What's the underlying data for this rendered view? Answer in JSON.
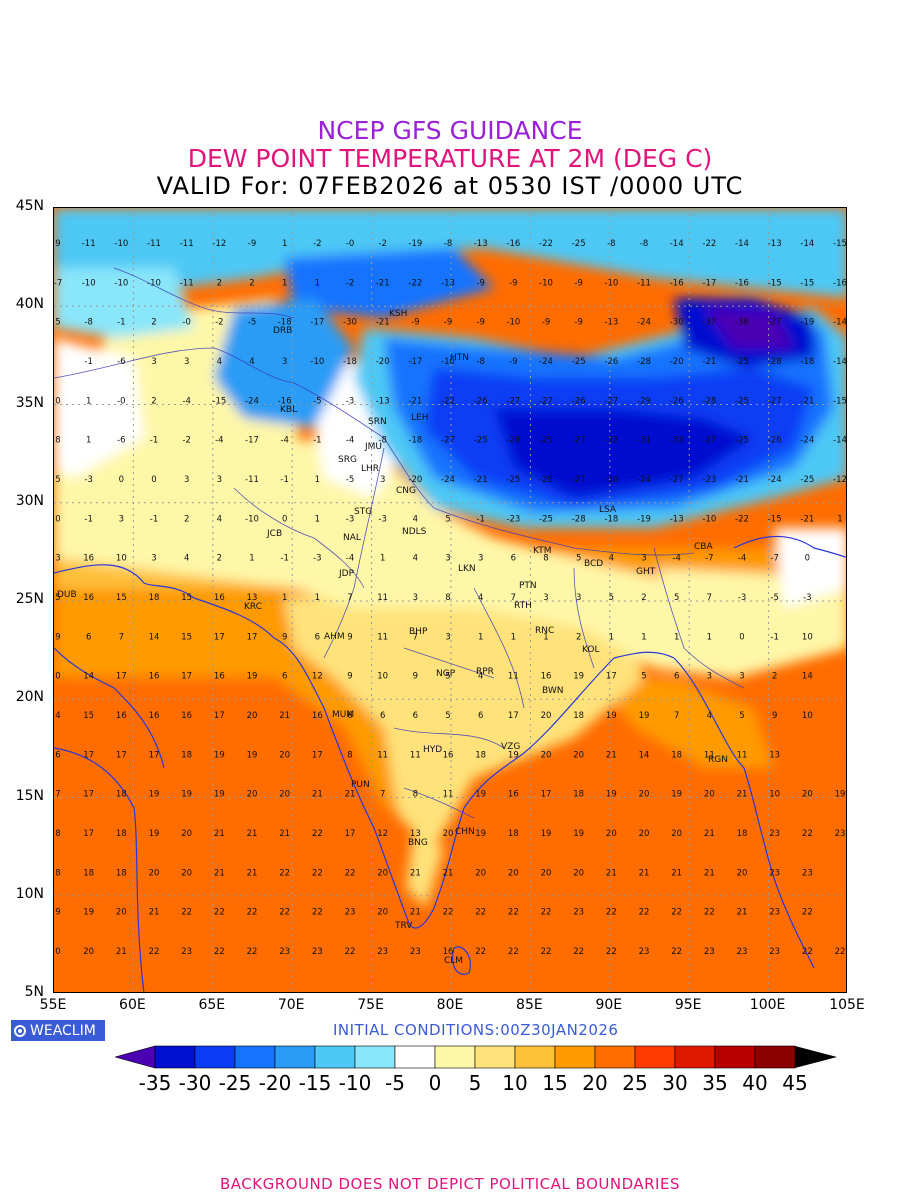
{
  "header": {
    "line1": "NCEP GFS GUIDANCE",
    "line2": "DEW POINT TEMPERATURE AT 2M (DEG C)",
    "line3": "VALID For: 07FEB2026 at 0530 IST /0000 UTC",
    "line1_color": "#9a1fd6",
    "line2_color": "#e0147a"
  },
  "axes": {
    "lat_labels": [
      "45N",
      "40N",
      "35N",
      "30N",
      "25N",
      "20N",
      "15N",
      "10N",
      "5N"
    ],
    "lon_labels": [
      "55E",
      "60E",
      "65E",
      "70E",
      "75E",
      "80E",
      "85E",
      "90E",
      "95E",
      "100E",
      "105E"
    ],
    "lat_range": [
      5,
      45
    ],
    "lon_range": [
      55,
      105
    ]
  },
  "logo": {
    "text": "WEACLIM",
    "color": "#3a5bd8"
  },
  "initial_conditions": "INITIAL CONDITIONS:00Z30JAN2026",
  "colorbar": {
    "labels": [
      "-35",
      "-30",
      "-25",
      "-20",
      "-15",
      "-10",
      "-5",
      "0",
      "5",
      "10",
      "15",
      "20",
      "25",
      "30",
      "35",
      "40",
      "45"
    ],
    "colors": [
      "#4b00b4",
      "#0010d0",
      "#0a3cf5",
      "#1473ff",
      "#2a9cf5",
      "#4ec8f5",
      "#8ae6fa",
      "#ffffff",
      "#fff7a8",
      "#ffe27a",
      "#ffc03a",
      "#ff9a00",
      "#ff6c00",
      "#ff3a00",
      "#e01800",
      "#b80000",
      "#8c0000",
      "#000000"
    ]
  },
  "cities": [
    "KSH",
    "DRB",
    "HTN",
    "KBL",
    "SRN",
    "LEH",
    "JMU",
    "SRG",
    "LHR",
    "CNG",
    "STG",
    "NAL",
    "NDLS",
    "JCB",
    "LSA",
    "KTM",
    "BCD",
    "CBA",
    "GHT",
    "JDP",
    "LKN",
    "PTN",
    "DUB",
    "KRC",
    "RTH",
    "BHP",
    "RNC",
    "AHM",
    "KOL",
    "NGP",
    "RPR",
    "BWN",
    "MUM",
    "HYD",
    "VZG",
    "RGN",
    "PUN",
    "CHN",
    "BNG",
    "TRV",
    "CLM"
  ],
  "grid_values": [
    [
      "9",
      "-11",
      "-10",
      "-11",
      "-11",
      "-12",
      "-9",
      "1",
      "-2",
      "-0",
      "-2",
      "-19",
      "-8",
      "-13",
      "-16",
      "-22",
      "-25",
      "-8",
      "-8",
      "-14",
      "-22",
      "-14",
      "-13",
      "-14",
      "-15"
    ],
    [
      "-7",
      "-10",
      "-10",
      "-10",
      "-11",
      "2",
      "2",
      "1",
      "1",
      "-2",
      "-21",
      "-22",
      "-13",
      "-9",
      "-9",
      "-10",
      "-9",
      "-10",
      "-11",
      "-16",
      "-17",
      "-16",
      "-15",
      "-15",
      "-16"
    ],
    [
      "5",
      "-8",
      "-1",
      "2",
      "-0",
      "-2",
      "-5",
      "-18",
      "-17",
      "-30",
      "-21",
      "-9",
      "-9",
      "-9",
      "-10",
      "-9",
      "-9",
      "-13",
      "-24",
      "-30",
      "-37",
      "-38",
      "-27",
      "-19",
      "-14"
    ],
    [
      "",
      "-1",
      "-6",
      "3",
      "3",
      "4",
      "4",
      "3",
      "-10",
      "-18",
      "-20",
      "-17",
      "-10",
      "-8",
      "-9",
      "-24",
      "-25",
      "-26",
      "-28",
      "-20",
      "-21",
      "-25",
      "-28",
      "-18",
      "-14"
    ],
    [
      "0",
      "1",
      "-0",
      "2",
      "-4",
      "-15",
      "-24",
      "-16",
      "-5",
      "-3",
      "-13",
      "-21",
      "-22",
      "-26",
      "-27",
      "-27",
      "-26",
      "-27",
      "-29",
      "-26",
      "-28",
      "-25",
      "-27",
      "-21",
      "-15"
    ],
    [
      "8",
      "1",
      "-6",
      "-1",
      "-2",
      "-4",
      "-17",
      "-4",
      "-1",
      "-4",
      "-8",
      "-18",
      "-27",
      "-25",
      "-26",
      "-25",
      "-27",
      "-32",
      "-31",
      "-33",
      "-27",
      "-25",
      "-26",
      "-24",
      "-14"
    ],
    [
      "5",
      "-3",
      "0",
      "0",
      "3",
      "3",
      "-11",
      "-1",
      "1",
      "-5",
      "3",
      "-20",
      "-24",
      "-21",
      "-25",
      "-28",
      "-27",
      "-30",
      "-24",
      "-27",
      "-23",
      "-21",
      "-24",
      "-25",
      "-12"
    ],
    [
      "0",
      "-1",
      "3",
      "-1",
      "2",
      "4",
      "-10",
      "0",
      "1",
      "-3",
      "-3",
      "4",
      "5",
      "-1",
      "-23",
      "-25",
      "-28",
      "-18",
      "-19",
      "-13",
      "-10",
      "-22",
      "-15",
      "-21",
      "1"
    ],
    [
      "3",
      "16",
      "10",
      "3",
      "4",
      "2",
      "1",
      "-1",
      "-3",
      "-4",
      "1",
      "4",
      "3",
      "3",
      "6",
      "8",
      "5",
      "4",
      "3",
      "-4",
      "-7",
      "-4",
      "-7",
      "0",
      ""
    ],
    [
      "5",
      "16",
      "15",
      "18",
      "15",
      "16",
      "13",
      "1",
      "1",
      "7",
      "11",
      "3",
      "8",
      "4",
      "7",
      "3",
      "3",
      "5",
      "2",
      "5",
      "7",
      "-3",
      "-5",
      "-3",
      ""
    ],
    [
      "9",
      "6",
      "7",
      "14",
      "15",
      "17",
      "17",
      "9",
      "6",
      "9",
      "11",
      "7",
      "3",
      "1",
      "1",
      "1",
      "2",
      "1",
      "1",
      "1",
      "1",
      "0",
      "-1",
      "10",
      ""
    ],
    [
      "0",
      "14",
      "17",
      "16",
      "17",
      "16",
      "19",
      "6",
      "12",
      "9",
      "10",
      "9",
      "5",
      "4",
      "11",
      "16",
      "19",
      "17",
      "5",
      "6",
      "3",
      "3",
      "2",
      "14",
      ""
    ],
    [
      "4",
      "15",
      "16",
      "16",
      "16",
      "17",
      "20",
      "21",
      "16",
      "6",
      "6",
      "6",
      "5",
      "6",
      "17",
      "20",
      "18",
      "19",
      "19",
      "7",
      "4",
      "5",
      "9",
      "10",
      ""
    ],
    [
      "6",
      "17",
      "17",
      "17",
      "18",
      "19",
      "19",
      "20",
      "17",
      "8",
      "11",
      "11",
      "16",
      "18",
      "19",
      "20",
      "20",
      "21",
      "14",
      "18",
      "11",
      "11",
      "13",
      "",
      ""
    ],
    [
      "7",
      "17",
      "18",
      "19",
      "19",
      "19",
      "20",
      "20",
      "21",
      "21",
      "7",
      "8",
      "11",
      "19",
      "16",
      "17",
      "18",
      "19",
      "20",
      "19",
      "20",
      "21",
      "10",
      "20",
      "19"
    ],
    [
      "8",
      "17",
      "18",
      "19",
      "20",
      "21",
      "21",
      "21",
      "22",
      "17",
      "12",
      "13",
      "20",
      "19",
      "18",
      "19",
      "19",
      "20",
      "20",
      "20",
      "21",
      "18",
      "23",
      "22",
      "23"
    ],
    [
      "8",
      "18",
      "18",
      "20",
      "20",
      "21",
      "21",
      "22",
      "22",
      "22",
      "20",
      "21",
      "21",
      "20",
      "20",
      "20",
      "20",
      "21",
      "21",
      "21",
      "21",
      "20",
      "23",
      "23",
      ""
    ],
    [
      "9",
      "19",
      "20",
      "21",
      "22",
      "22",
      "22",
      "22",
      "22",
      "23",
      "20",
      "21",
      "22",
      "22",
      "22",
      "22",
      "23",
      "22",
      "22",
      "22",
      "22",
      "21",
      "23",
      "22",
      ""
    ],
    [
      "0",
      "20",
      "21",
      "22",
      "23",
      "22",
      "22",
      "23",
      "23",
      "22",
      "23",
      "23",
      "16",
      "22",
      "22",
      "22",
      "22",
      "22",
      "23",
      "22",
      "23",
      "23",
      "23",
      "22",
      "22"
    ]
  ],
  "footer": {
    "text": "BACKGROUND DOES NOT DEPICT POLITICAL BOUNDARIES",
    "color": "#e0147a"
  }
}
